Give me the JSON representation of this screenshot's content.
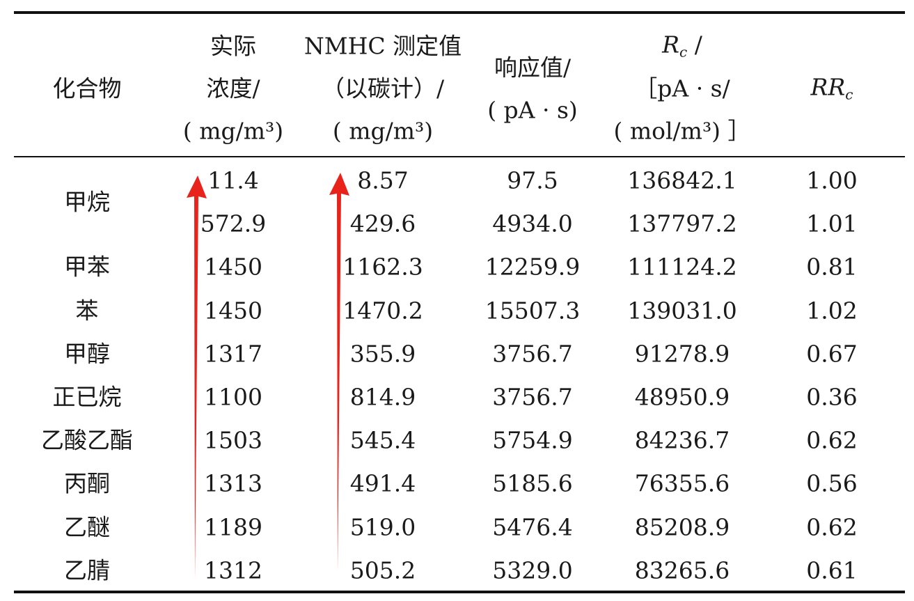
{
  "table": {
    "columns": [
      {
        "lines": [
          "化合物"
        ]
      },
      {
        "lines": [
          "实际",
          "浓度/",
          "( mg/m³)"
        ]
      },
      {
        "lines": [
          "NMHC 测定值",
          "（以碳计）/",
          "( mg/m³)"
        ]
      },
      {
        "lines": [
          "响应值/",
          "( pA · s)"
        ]
      },
      {
        "lines": [
          {
            "main": "R",
            "sub": "c",
            "after": " /"
          },
          "［pA · s/",
          "( mol/m³) ］"
        ]
      },
      {
        "lines": [
          {
            "main": "RR",
            "sub": "c"
          }
        ]
      }
    ],
    "groups": [
      {
        "name": "甲烷",
        "rows": [
          [
            "11.4",
            "8.57",
            "97.5",
            "136842.1",
            "1.00"
          ],
          [
            "572.9",
            "429.6",
            "4934.0",
            "137797.2",
            "1.01"
          ]
        ]
      },
      {
        "name": "甲苯",
        "rows": [
          [
            "1450",
            "1162.3",
            "12259.9",
            "111124.2",
            "0.81"
          ]
        ]
      },
      {
        "name": "苯",
        "rows": [
          [
            "1450",
            "1470.2",
            "15507.3",
            "139031.0",
            "1.02"
          ]
        ]
      },
      {
        "name": "甲醇",
        "rows": [
          [
            "1317",
            "355.9",
            "3756.7",
            "91278.9",
            "0.67"
          ]
        ]
      },
      {
        "name": "正已烷",
        "rows": [
          [
            "1100",
            "814.9",
            "3756.7",
            "48950.9",
            "0.36"
          ]
        ]
      },
      {
        "name": "乙酸乙酯",
        "rows": [
          [
            "1503",
            "545.4",
            "5754.9",
            "84236.7",
            "0.62"
          ]
        ]
      },
      {
        "name": "丙酮",
        "rows": [
          [
            "1313",
            "491.4",
            "5185.6",
            "76355.6",
            "0.56"
          ]
        ]
      },
      {
        "name": "乙醚",
        "rows": [
          [
            "1189",
            "519.0",
            "5476.4",
            "85208.9",
            "0.62"
          ]
        ]
      },
      {
        "name": "乙腈",
        "rows": [
          [
            "1312",
            "505.2",
            "5329.0",
            "83265.6",
            "0.61"
          ]
        ]
      }
    ]
  }
}
